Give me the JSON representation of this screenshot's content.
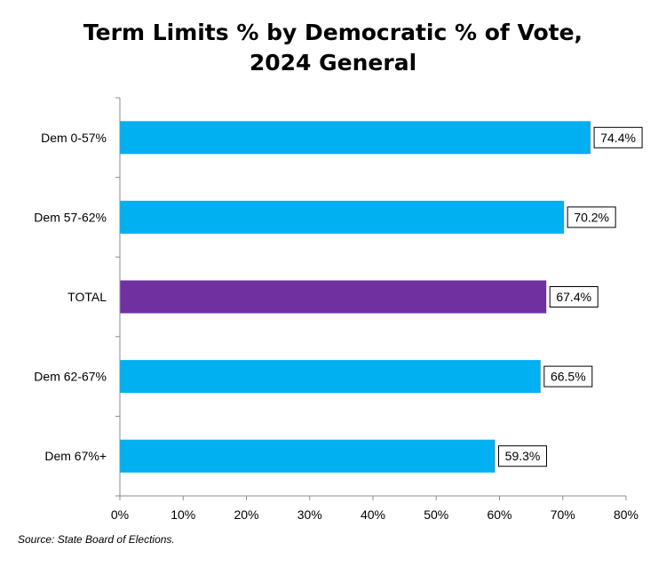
{
  "chart_data": {
    "type": "bar",
    "orientation": "horizontal",
    "title_lines": [
      "Term Limits % by Democratic % of Vote,",
      "2024 General"
    ],
    "categories": [
      "Dem 0-57%",
      "Dem 57-62%",
      "TOTAL",
      "Dem 62-67%",
      "Dem 67%+"
    ],
    "values": [
      74.4,
      70.2,
      67.4,
      66.5,
      59.3
    ],
    "data_labels": [
      "74.4%",
      "70.2%",
      "67.4%",
      "66.5%",
      "59.3%"
    ],
    "bar_colors": [
      "#00b0f0",
      "#00b0f0",
      "#7030a0",
      "#00b0f0",
      "#00b0f0"
    ],
    "xlim": [
      0,
      80
    ],
    "x_ticks": [
      0,
      10,
      20,
      30,
      40,
      50,
      60,
      70,
      80
    ],
    "x_tick_labels": [
      "0%",
      "10%",
      "20%",
      "30%",
      "40%",
      "50%",
      "60%",
      "70%",
      "80%"
    ],
    "grid": false,
    "legend": "none"
  },
  "source_note": "Source: State Board of Elections."
}
